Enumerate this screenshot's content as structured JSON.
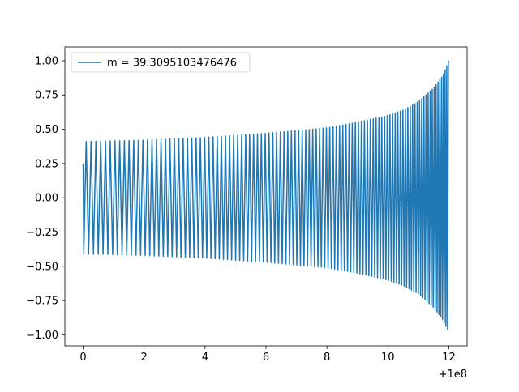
{
  "chart_data": {
    "type": "line",
    "title": "",
    "xlabel": "",
    "ylabel": "",
    "xlim": [
      -0.6,
      12.6
    ],
    "ylim": [
      -1.08,
      1.1
    ],
    "x_offset_label": "+1e8",
    "x_ticks": [
      0,
      2,
      4,
      6,
      8,
      10,
      12
    ],
    "x_tick_labels": [
      "0",
      "2",
      "4",
      "6",
      "8",
      "10",
      "12"
    ],
    "y_ticks": [
      -1.0,
      -0.75,
      -0.5,
      -0.25,
      0.0,
      0.25,
      0.5,
      0.75,
      1.0
    ],
    "y_tick_labels": [
      "−1.00",
      "−0.75",
      "−0.50",
      "−0.25",
      "0.00",
      "0.25",
      "0.50",
      "0.75",
      "1.00"
    ],
    "grid": false,
    "legend": {
      "position": "upper-left"
    },
    "series": [
      {
        "name": "m = 39.3095103476476",
        "color": "#1f77b4",
        "description": "chirp-like oscillation: amplitude ~0.41 at start, growing to ~1.0 at x≈12; frequency increasing with x",
        "start": {
          "x": 0.0,
          "y": 0.25
        },
        "end": {
          "x": 12.0,
          "y": 1.0
        },
        "envelope_x": [
          0,
          2,
          4,
          6,
          8,
          9,
          10,
          10.5,
          11,
          11.5,
          11.8,
          12.0
        ],
        "envelope_upper": [
          0.41,
          0.42,
          0.44,
          0.47,
          0.51,
          0.55,
          0.6,
          0.64,
          0.7,
          0.8,
          0.89,
          1.0
        ],
        "envelope_lower": [
          -0.41,
          -0.42,
          -0.44,
          -0.47,
          -0.51,
          -0.55,
          -0.6,
          -0.64,
          -0.7,
          -0.8,
          -0.89,
          -0.98
        ]
      }
    ]
  }
}
